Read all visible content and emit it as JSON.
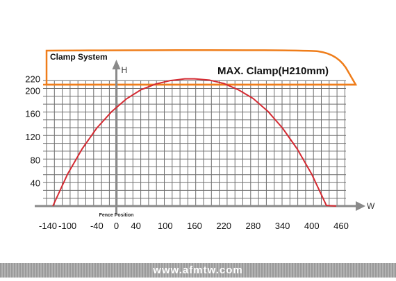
{
  "chart_data": {
    "type": "line",
    "title": "MAX. Clamp(H210mm)",
    "box_label": "Clamp System",
    "xlabel": "W",
    "ylabel": "H",
    "annotation": "Fence Position",
    "xlim": [
      -150,
      470
    ],
    "ylim": [
      0,
      225
    ],
    "x_ticks": [
      -140,
      -100,
      -40,
      0,
      40,
      100,
      160,
      220,
      280,
      340,
      400,
      460
    ],
    "y_ticks": [
      40,
      80,
      120,
      160,
      200,
      220
    ],
    "clamp_line_y": 210,
    "grid": true,
    "series": [
      {
        "color": "#d42a32",
        "x": [
          -130,
          -100,
          -70,
          -40,
          -10,
          20,
          50,
          80,
          110,
          140,
          160,
          190,
          220,
          250,
          280,
          310,
          340,
          370,
          400,
          430,
          450
        ],
        "y": [
          0,
          55,
          99,
          135,
          163,
          185,
          201,
          211,
          217,
          220,
          220,
          218,
          212,
          201,
          186,
          164,
          135,
          99,
          55,
          1,
          0
        ]
      }
    ],
    "colors": {
      "axis": "#8a8a8a",
      "grid": "#6e6e6e",
      "clamp": "#ef7d1a",
      "curve": "#d42a32"
    }
  },
  "footer": {
    "text": "www.afmtw.com"
  }
}
